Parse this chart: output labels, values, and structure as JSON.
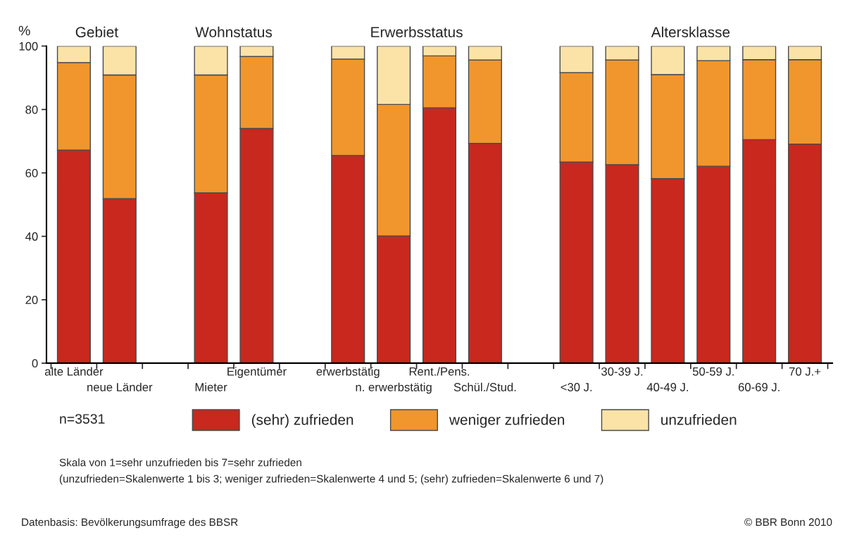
{
  "chart_data": {
    "type": "bar",
    "stacked": true,
    "ylabel": "%",
    "categories": [
      "alte Länder",
      "neue Länder",
      null,
      "Mieter",
      "Eigentümer",
      null,
      "erwerbstätig",
      "n. erwerbstätig",
      "Rent./Pens.",
      "Schül./Stud.",
      null,
      "<30 J.",
      "30-39 J.",
      "40-49 J.",
      "50-59 J.",
      "60-69 J.",
      "70 J.+"
    ],
    "series": [
      {
        "name": "(sehr) zufrieden",
        "color": "#c8281e",
        "values": [
          67.2,
          51.9,
          null,
          53.7,
          74.0,
          null,
          65.5,
          40.1,
          80.5,
          69.3,
          null,
          63.4,
          62.6,
          58.2,
          62.1,
          70.5,
          69.1
        ]
      },
      {
        "name": "weniger zufrieden",
        "color": "#f0962d",
        "values": [
          27.6,
          39.0,
          null,
          37.2,
          22.7,
          null,
          30.4,
          41.5,
          16.4,
          26.3,
          null,
          28.2,
          33.0,
          32.8,
          33.3,
          25.2,
          26.6
        ]
      },
      {
        "name": "unzufrieden",
        "color": "#fbe3a8",
        "values": [
          5.2,
          9.1,
          null,
          9.1,
          3.3,
          null,
          4.1,
          18.4,
          3.1,
          4.4,
          null,
          8.4,
          4.4,
          9.0,
          4.6,
          4.3,
          4.3
        ]
      }
    ],
    "ylim": [
      0,
      100
    ],
    "yticks": [
      0,
      20,
      40,
      60,
      80,
      100
    ],
    "grid": false,
    "legend": "bottom",
    "annotations": [
      "Gebiet",
      "Wohnstatus",
      "Erwerbsstatus",
      "Altersklasse",
      "n=3531",
      "Skala von 1=sehr unzufrieden bis 7=sehr zufrieden",
      "(unzufrieden=Skalenwerte 1 bis 3; weniger zufrieden=Skalenwerte 4 und 5; (sehr) zufrieden=Skalenwerte 6 und 7)",
      "Datenbasis: Bevölkerungsumfrage des BBSR",
      "© BBR Bonn 2010"
    ]
  }
}
